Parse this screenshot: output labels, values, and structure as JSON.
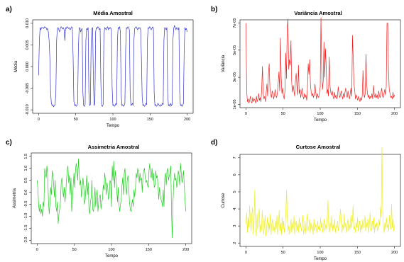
{
  "panel_letters": [
    "a)",
    "b)",
    "c)",
    "d)"
  ],
  "chart_data": [
    {
      "type": "line",
      "title": "Média Amostral",
      "xlabel": "Tempo",
      "ylabel": "Média",
      "xlim": [
        0,
        200
      ],
      "ylim": [
        -0.01,
        0.01
      ],
      "xticks": [
        "0",
        "50",
        "100",
        "150",
        "200"
      ],
      "yticks": [
        "-0.010",
        "-0.005",
        "0.000",
        "0.005",
        "0.010"
      ],
      "ytick_values": [
        -0.01,
        -0.005,
        0.0,
        0.005,
        0.01
      ],
      "color": "#3333cc",
      "series": [
        {
          "values": [
            -0.002,
            0.006,
            0.009,
            0.0085,
            0.009,
            0.009,
            0.009,
            0.0088,
            0.0092,
            0.009,
            0.009,
            0.0085,
            0.0088,
            0.008,
            0.006,
            0.002,
            -0.006,
            -0.0085,
            -0.009,
            -0.0088,
            -0.0093,
            -0.009,
            -0.0088,
            -0.006,
            0.006,
            0.0088,
            0.009,
            0.0085,
            0.008,
            0.0088,
            0.0092,
            0.009,
            0.0087,
            0.009,
            0.0085,
            0.006,
            0.009,
            0.0088,
            0.0092,
            0.009,
            0.0088,
            0.009,
            0.0085,
            0.0088,
            0.0092,
            0.0089,
            0.002,
            -0.008,
            -0.009,
            -0.0088,
            -0.0092,
            -0.009,
            -0.0085,
            0.004,
            0.0088,
            0.009,
            0.008,
            0.0085,
            0.0088,
            -0.006,
            -0.009,
            -0.0092,
            -0.0088,
            0.006,
            0.0088,
            0.0085,
            0.009,
            -0.006,
            -0.009,
            -0.0088,
            0.005,
            0.0088,
            0.009,
            -0.003,
            -0.009,
            -0.0085,
            0.008,
            0.009,
            0.0088,
            0.0092,
            0.009,
            0.0085,
            0.0088,
            -0.004,
            -0.009,
            -0.0092,
            -0.0088,
            0.007,
            0.009,
            0.0088,
            0.0085,
            0.009,
            0.0092,
            0.0085,
            0.009,
            0.0088,
            0.009,
            0.0085,
            -0.005,
            -0.009,
            -0.0088,
            -0.0092,
            -0.009,
            -0.0085,
            -0.0088,
            0.006,
            0.009,
            0.0088,
            0.0092,
            0.008,
            -0.006,
            -0.009,
            -0.0088,
            -0.0092,
            -0.009,
            -0.0085,
            0.004,
            0.009,
            0.0088,
            0.0092,
            0.009,
            0.0085,
            -0.006,
            -0.009,
            -0.0088,
            -0.0085,
            -0.009,
            0.006,
            0.0088,
            0.009,
            0.0092,
            0.0088,
            0.0085,
            0.009,
            0.0088,
            0.009,
            0.0085,
            0.002,
            -0.007,
            -0.009,
            -0.0088,
            -0.0092,
            -0.009,
            -0.0085,
            -0.0088,
            0.006,
            0.009,
            0.0088,
            0.0092,
            0.009,
            0.0085,
            0.0088,
            0.0092,
            0.0088,
            -0.006,
            -0.009,
            -0.0088,
            -0.0092,
            -0.009,
            -0.0085,
            -0.0088,
            -0.009,
            -0.0092,
            -0.0088,
            -0.009,
            -0.0085,
            -0.0088,
            0.006,
            0.009,
            0.0088,
            0.0085,
            0.009,
            -0.006,
            -0.009,
            -0.0088,
            -0.0092,
            -0.0085,
            -0.009,
            -0.0088,
            0.006,
            0.0088,
            0.0095,
            0.009,
            0.0085,
            0.009,
            0.0088,
            0.0085,
            0.009,
            -0.006,
            -0.009,
            -0.0088,
            -0.0092,
            -0.009,
            -0.0085,
            0.004,
            0.009,
            0.0085,
            0.0088,
            0.008
          ]
        }
      ]
    },
    {
      "type": "line",
      "title": "Variância Amostral",
      "xlabel": "Tempo",
      "ylabel": "Variância",
      "xlim": [
        0,
        200
      ],
      "ylim": [
        1e-05,
        7e-05
      ],
      "xticks": [
        "0",
        "50",
        "100",
        "150",
        "200"
      ],
      "yticks": [
        "1e-05",
        "3e-05",
        "5e-05",
        "7e-05"
      ],
      "ytick_values": [
        1e-05,
        3e-05,
        5e-05,
        7e-05
      ],
      "color": "#ee2222",
      "series": [
        {
          "values": [
            7e-05,
            2e-05,
            1.2e-05,
            1.4e-05,
            1.1e-05,
            1.3e-05,
            1.6e-05,
            1.2e-05,
            1.1e-05,
            1.5e-05,
            1.2e-05,
            1.4e-05,
            1.3e-05,
            1.1e-05,
            1.6e-05,
            1.2e-05,
            1.4e-05,
            1.8e-05,
            1.3e-05,
            1.5e-05,
            1.2e-05,
            2.1e-05,
            3.8e-05,
            1.8e-05,
            1.4e-05,
            1.6e-05,
            1.2e-05,
            1.9e-05,
            2.5e-05,
            1.6e-05,
            3.2e-05,
            4e-05,
            2.2e-05,
            1.7e-05,
            1.5e-05,
            2e-05,
            1.8e-05,
            1.4e-05,
            1.7e-05,
            2.1e-05,
            1.6e-05,
            1.5e-05,
            1.9e-05,
            2.6e-05,
            3.4e-05,
            2e-05,
            5.9e-05,
            3e-05,
            1.8e-05,
            2.2e-05,
            1.6e-05,
            1.4e-05,
            2e-05,
            4.8e-05,
            2.9e-05,
            6.5e-05,
            7.3e-05,
            3.6e-05,
            4.3e-05,
            3.9e-05,
            5.7e-05,
            2.6e-05,
            1.9e-05,
            2.4e-05,
            2e-05,
            1.6e-05,
            2.8e-05,
            3.3e-05,
            2.3e-05,
            1.7e-05,
            3.9e-05,
            1.8e-05,
            2.1e-05,
            1.5e-05,
            1.9e-05,
            2.2e-05,
            1.6e-05,
            1.4e-05,
            1.8e-05,
            1.5e-05,
            1.7e-05,
            1.3e-05,
            2.2e-05,
            4e-05,
            3.2e-05,
            4.3e-05,
            2.4e-05,
            1.9e-05,
            1.6e-05,
            1.8e-05,
            1.5e-05,
            1.7e-05,
            2.5e-05,
            1.9e-05,
            1.4e-05,
            1.8e-05,
            1.6e-05,
            1.5e-05,
            1.9e-05,
            2.3e-05,
            7.4e-05,
            3.5e-05,
            2.1e-05,
            2.7e-05,
            5.6e-05,
            3e-05,
            5.1e-05,
            3.8e-05,
            1.8e-05,
            2.1e-05,
            1.6e-05,
            4.5e-05,
            2.4e-05,
            1.9e-05,
            1.7e-05,
            2e-05,
            1.6e-05,
            1.4e-05,
            1.9e-05,
            1.5e-05,
            1.7e-05,
            1.4e-05,
            1.6e-05,
            2.3e-05,
            1.8e-05,
            1.5e-05,
            1.7e-05,
            2e-05,
            1.6e-05,
            1.4e-05,
            1.8e-05,
            1.5e-05,
            1.9e-05,
            2.2e-05,
            1.7e-05,
            1.5e-05,
            2e-05,
            1.6e-05,
            1.4e-05,
            1.8e-05,
            2.2e-05,
            1.6e-05,
            6.1e-05,
            4.4e-05,
            2.5e-05,
            2e-05,
            1.4e-05,
            1.7e-05,
            1.5e-05,
            1.3e-05,
            1.6e-05,
            1.4e-05,
            1.2e-05,
            1.5e-05,
            1.3e-05,
            1.6e-05,
            3.5e-05,
            1.9e-05,
            1.5e-05,
            1.8e-05,
            4.7e-05,
            2.4e-05,
            1.8e-05,
            1.5e-05,
            1.7e-05,
            1.4e-05,
            1.6e-05,
            1.5e-05,
            1.8e-05,
            1.4e-05,
            2.4e-05,
            1.7e-05,
            1.5e-05,
            1.8e-05,
            1.5e-05,
            1.7e-05,
            1.4e-05,
            2e-05,
            1.6e-05,
            1.5e-05,
            1.9e-05,
            2.2e-05,
            1.6e-05,
            1.5e-05,
            1.8e-05,
            2.1e-05,
            1.7e-05,
            2.3e-05,
            7e-05,
            7e-05,
            3.5e-05,
            2.1e-05,
            1.8e-05,
            1.5e-05,
            1.6e-05,
            1.4e-05,
            1.9e-05,
            1.5e-05,
            1.7e-05
          ]
        }
      ]
    },
    {
      "type": "line",
      "title": "Assimetria Amostral",
      "xlabel": "Tempo",
      "ylabel": "Assimetria",
      "xlim": [
        0,
        200
      ],
      "ylim": [
        -2.0,
        1.5
      ],
      "xticks": [
        "0",
        "50",
        "100",
        "150",
        "200"
      ],
      "yticks": [
        "-2.0",
        "-1.5",
        "-1.0",
        "-0.5",
        "0.0",
        "0.5",
        "1.0",
        "1.5"
      ],
      "ytick_values": [
        -2.0,
        -1.5,
        -1.0,
        -0.5,
        0.0,
        0.5,
        1.0,
        1.5
      ],
      "color": "#22cc22",
      "series": [
        {
          "values": [
            0.5,
            0.1,
            -0.6,
            -0.8,
            -0.5,
            -0.9,
            -0.7,
            -1.0,
            -0.4,
            -0.6,
            1.0,
            0.8,
            0.6,
            1.1,
            0.7,
            -0.3,
            -0.9,
            -0.5,
            0.2,
            -0.1,
            0.9,
            0.7,
            0.3,
            -0.2,
            0.5,
            -0.6,
            -0.8,
            -0.4,
            -1.3,
            -0.9,
            -0.7,
            -0.4,
            0.4,
            0.6,
            0.1,
            -0.2,
            0.2,
            -0.4,
            -0.1,
            0.5,
            0.9,
            1.1,
            0.4,
            0.7,
            -0.1,
            0.6,
            -0.8,
            -0.4,
            0.3,
            0.8,
            0.2,
            0.9,
            1.2,
            1.0,
            0.5,
            1.4,
            0.8,
            0.3,
            0.5,
            -0.2,
            0.1,
            0.6,
            0.3,
            -0.5,
            -0.3,
            0.2,
            0.7,
            -0.1,
            0.4,
            -0.7,
            -0.9,
            -0.4,
            -0.2,
            0.5,
            -0.7,
            -0.8,
            -0.5,
            0.2,
            -0.6,
            -0.2,
            0.1,
            -0.8,
            -0.4,
            -0.2,
            -0.1,
            -0.7,
            -0.4,
            -0.3,
            0.3,
            0.1,
            0.8,
            0.5,
            -0.1,
            0.4,
            0.2,
            -0.3,
            -0.2,
            0.5,
            0.4,
            -0.6,
            1.1,
            0.5,
            1.3,
            0.2,
            0.9,
            0.6,
            0.1,
            -0.4,
            0.2,
            -0.5,
            -0.8,
            -0.5,
            -0.3,
            0.3,
            0.6,
            -0.1,
            0.8,
            1.0,
            0.2,
            -0.1,
            0.5,
            0.7,
            0.2,
            -0.4,
            -0.7,
            -0.8,
            -0.5,
            -0.3,
            -0.6,
            0.1,
            -0.2,
            0.2,
            0.8,
            0.6,
            1.0,
            0.8,
            0.4,
            0.8,
            0.5,
            0.6,
            0.0,
            0.7,
            0.9,
            1.0,
            0.6,
            0.4,
            0.5,
            0.3,
            0.2,
            0.9,
            1.2,
            0.7,
            0.6,
            1.0,
            0.5,
            0.8,
            0.2,
            0.3,
            0.9,
            0.6,
            0.7,
            0.3,
            -0.3,
            0.2,
            -0.1,
            -0.3,
            -0.4,
            -0.6,
            0.1,
            -0.6,
            0.6,
            0.8,
            0.3,
            0.9,
            1.0,
            0.5,
            0.7,
            0.8,
            1.1,
            -0.8,
            -1.9,
            -0.4,
            0.4,
            0.8,
            0.5,
            0.6,
            0.2,
            0.4,
            0.9,
            0.7,
            0.3,
            1.2,
            0.8,
            0.4,
            0.6,
            0.9,
            0.3,
            -0.3,
            -0.8
          ]
        }
      ]
    },
    {
      "type": "line",
      "title": "Curtose Amostral",
      "xlabel": "Tempo",
      "ylabel": "Curtose",
      "xlim": [
        0,
        200
      ],
      "ylim": [
        2,
        7
      ],
      "xticks": [
        "0",
        "50",
        "100",
        "150",
        "200"
      ],
      "yticks": [
        "2",
        "3",
        "4",
        "5",
        "6",
        "7"
      ],
      "ytick_values": [
        2,
        3,
        4,
        5,
        6,
        7
      ],
      "color": "#eeee22",
      "series": [
        {
          "values": [
            3.1,
            3.8,
            2.6,
            3.5,
            2.9,
            4.2,
            3.3,
            2.7,
            3.6,
            4.1,
            2.5,
            3.2,
            5.1,
            3.0,
            2.4,
            3.7,
            2.8,
            3.4,
            4.0,
            2.6,
            3.1,
            2.7,
            3.9,
            3.3,
            2.5,
            3.0,
            3.6,
            2.4,
            2.9,
            3.5,
            2.6,
            3.2,
            2.8,
            3.7,
            2.5,
            3.1,
            3.4,
            2.7,
            3.0,
            2.6,
            3.3,
            2.8,
            3.6,
            2.5,
            3.0,
            3.9,
            2.7,
            3.2,
            2.5,
            3.5,
            2.8,
            3.3,
            2.6,
            3.1,
            3.8,
            5.1,
            3.4,
            2.7,
            3.0,
            2.5,
            2.9,
            3.4,
            2.6,
            3.2,
            2.8,
            3.6,
            2.5,
            3.0,
            3.3,
            2.7,
            3.1,
            2.6,
            3.5,
            2.9,
            3.2,
            2.7,
            3.0,
            3.6,
            2.5,
            2.8,
            3.3,
            2.6,
            3.1,
            3.7,
            2.7,
            2.9,
            3.4,
            2.6,
            3.2,
            2.8,
            3.0,
            2.5,
            3.4,
            2.7,
            3.1,
            2.9,
            2.6,
            3.3,
            2.8,
            3.0,
            2.7,
            3.5,
            2.9,
            3.2,
            2.6,
            3.0,
            3.4,
            2.7,
            3.1,
            2.8,
            3.5,
            4.5,
            3.0,
            2.6,
            3.2,
            2.9,
            3.6,
            2.7,
            3.1,
            2.8,
            3.4,
            2.6,
            3.0,
            2.9,
            3.3,
            2.7,
            3.0,
            3.5,
            4.0,
            3.2,
            2.6,
            3.1,
            2.8,
            3.7,
            2.9,
            3.2,
            2.6,
            3.0,
            3.4,
            2.7,
            3.1,
            2.8,
            3.6,
            2.9,
            3.3,
            4.2,
            2.8,
            3.0,
            2.6,
            3.2,
            2.9,
            3.5,
            2.7,
            3.0,
            3.3,
            2.6,
            3.1,
            2.8,
            3.4,
            2.9,
            3.0,
            3.6,
            2.7,
            3.2,
            2.9,
            3.4,
            2.6,
            3.1,
            3.8,
            2.7,
            3.0,
            3.3,
            2.8,
            3.5,
            2.6,
            3.1,
            2.9,
            3.2,
            2.7,
            3.0,
            3.4,
            3.0,
            4.1,
            3.5,
            7.6,
            3.9,
            3.0,
            2.6,
            3.2,
            2.8,
            3.5,
            2.9,
            3.1,
            2.7,
            3.6,
            3.0,
            2.8,
            4.3,
            2.9,
            3.4,
            2.7,
            3.1
          ]
        }
      ]
    }
  ]
}
